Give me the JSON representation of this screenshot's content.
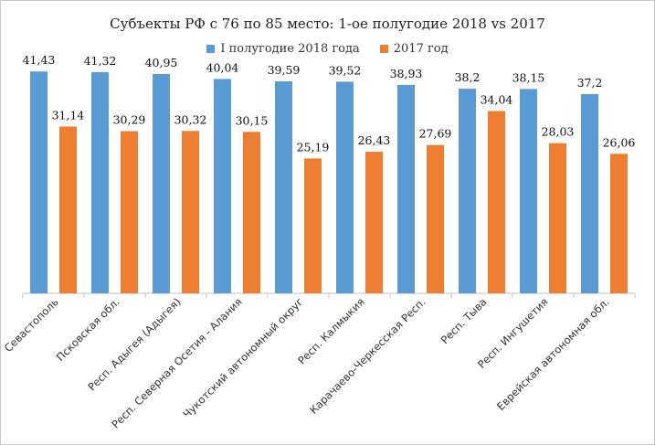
{
  "chart_data": {
    "type": "bar",
    "title": "Субъекты РФ с 76 по 85 место: 1-ое полугодие 2018 vs 2017",
    "categories": [
      "Севастополь",
      "Псковская обл.",
      "Респ. Адыгея (Адыгея)",
      "Респ. Северная Осетия - Алания",
      "Чукотский автономный округ",
      "Респ. Калмыкия",
      "Карачаево-Черкесская Респ.",
      "Респ. Тыва",
      "Респ. Ингушетия",
      "Еврейская автономная обл."
    ],
    "series": [
      {
        "name": "I полугодие 2018 года",
        "color": "#5b9bd5",
        "values": [
          41.43,
          41.32,
          40.95,
          40.04,
          39.59,
          39.52,
          38.93,
          38.2,
          38.15,
          37.2
        ],
        "labels": [
          "41,43",
          "41,32",
          "40,95",
          "40,04",
          "39,59",
          "39,52",
          "38,93",
          "38,2",
          "38,15",
          "37,2"
        ]
      },
      {
        "name": "2017 год",
        "color": "#ed7d31",
        "values": [
          31.14,
          30.29,
          30.32,
          30.15,
          25.19,
          26.43,
          27.69,
          34.04,
          28.03,
          26.06
        ],
        "labels": [
          "31,14",
          "30,29",
          "30,32",
          "30,15",
          "25,19",
          "26,43",
          "27,69",
          "34,04",
          "28,03",
          "26,06"
        ]
      }
    ],
    "ylim": [
      0,
      50
    ],
    "grid": false,
    "legend_position": "top"
  }
}
